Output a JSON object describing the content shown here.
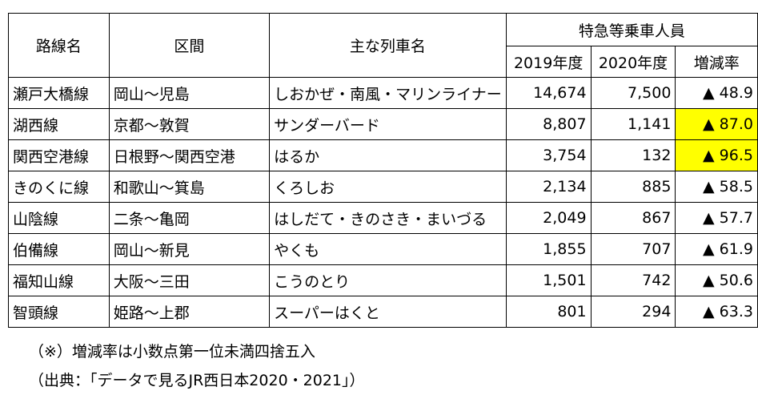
{
  "table": {
    "headers": {
      "line": "路線名",
      "section": "区間",
      "trains": "主な列車名",
      "group": "特急等乗車人員",
      "y2019": "2019年度",
      "y2020": "2020年度",
      "change": "増減率"
    },
    "rows": [
      {
        "line": "瀬戸大橋線",
        "section": "岡山～児島",
        "trains": "しおかぜ・南風・マリンライナー",
        "y2019": "14,674",
        "y2020": "7,500",
        "change": "▲ 48.9",
        "highlight": false
      },
      {
        "line": "湖西線",
        "section": "京都～敦賀",
        "trains": "サンダーバード",
        "y2019": "8,807",
        "y2020": "1,141",
        "change": "▲ 87.0",
        "highlight": true
      },
      {
        "line": "関西空港線",
        "section": "日根野～関西空港",
        "trains": "はるか",
        "y2019": "3,754",
        "y2020": "132",
        "change": "▲ 96.5",
        "highlight": true
      },
      {
        "line": "きのくに線",
        "section": "和歌山～箕島",
        "trains": "くろしお",
        "y2019": "2,134",
        "y2020": "885",
        "change": "▲ 58.5",
        "highlight": false
      },
      {
        "line": "山陰線",
        "section": "二条～亀岡",
        "trains": "はしだて・きのさき・まいづる",
        "y2019": "2,049",
        "y2020": "867",
        "change": "▲ 57.7",
        "highlight": false
      },
      {
        "line": "伯備線",
        "section": "岡山～新見",
        "trains": "やくも",
        "y2019": "1,855",
        "y2020": "707",
        "change": "▲ 61.9",
        "highlight": false
      },
      {
        "line": "福知山線",
        "section": "大阪～三田",
        "trains": "こうのとり",
        "y2019": "1,501",
        "y2020": "742",
        "change": "▲ 50.6",
        "highlight": false
      },
      {
        "line": "智頭線",
        "section": "姫路～上郡",
        "trains": "スーパーはくと",
        "y2019": "801",
        "y2020": "294",
        "change": "▲ 63.3",
        "highlight": false
      }
    ]
  },
  "notes": {
    "rounding": "（※）増減率は小数点第一位未満四捨五入",
    "source": "（出典：「データで見るJR西日本2020・2021」）"
  },
  "colors": {
    "highlight": "#ffff00",
    "border": "#000000"
  }
}
